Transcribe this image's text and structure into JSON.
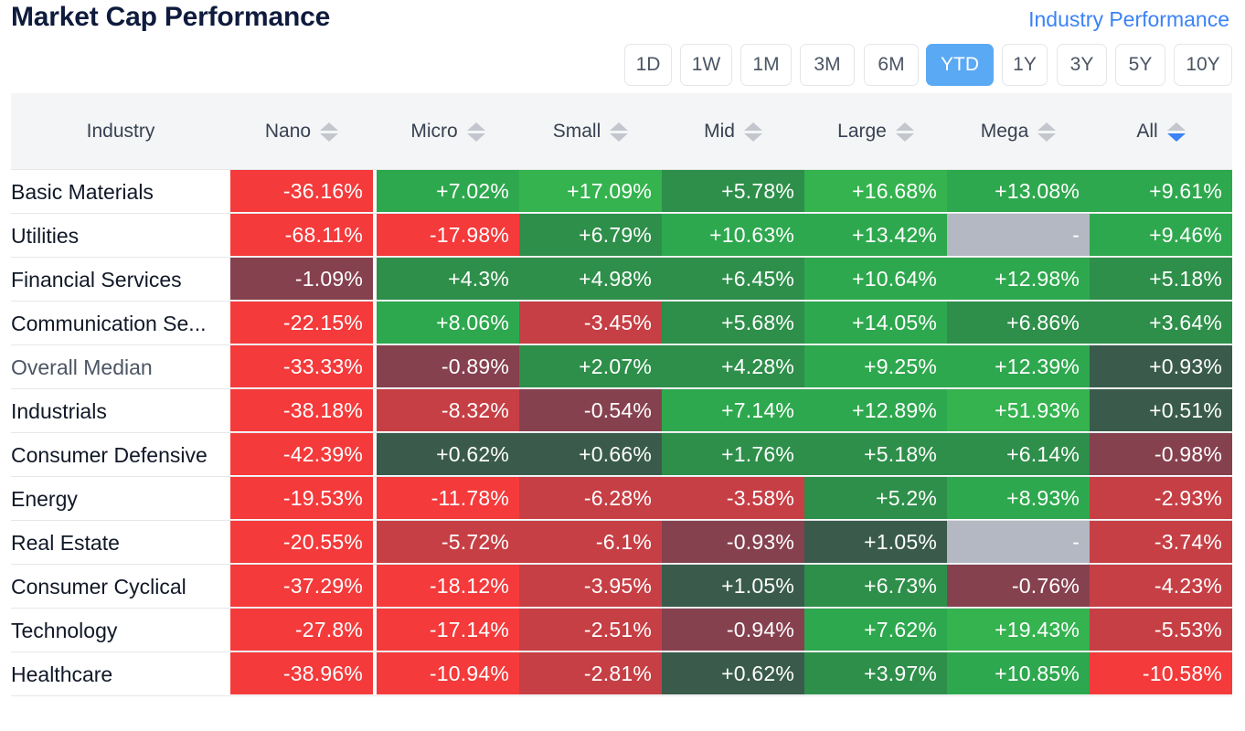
{
  "header": {
    "title": "Market Cap Performance",
    "link_label": "Industry Performance"
  },
  "periods": [
    {
      "label": "1D",
      "active": false
    },
    {
      "label": "1W",
      "active": false
    },
    {
      "label": "1M",
      "active": false
    },
    {
      "label": "3M",
      "active": false
    },
    {
      "label": "6M",
      "active": false
    },
    {
      "label": "YTD",
      "active": true
    },
    {
      "label": "1Y",
      "active": false
    },
    {
      "label": "3Y",
      "active": false
    },
    {
      "label": "5Y",
      "active": false
    },
    {
      "label": "10Y",
      "active": false
    }
  ],
  "columns": {
    "industry": "Industry",
    "caps": [
      "Nano",
      "Micro",
      "Small",
      "Mid",
      "Large",
      "Mega",
      "All"
    ],
    "sorted_column": "All",
    "sort_direction": "descending"
  },
  "colors": {
    "accent": "#3b82f6",
    "active_period": "#5aa9f5",
    "strong_red": "#f43a3b",
    "mid_red": "#c63f45",
    "weak_red": "#86414f",
    "weak_green": "#3a5b4c",
    "mid_green": "#2e8f4a",
    "green": "#2ea84e",
    "strong_green": "#34b34f",
    "missing": "#b3b8c3"
  },
  "rows": [
    {
      "name": "Basic Materials",
      "median": false,
      "values": [
        "-36.16%",
        "+7.02%",
        "+17.09%",
        "+5.78%",
        "+16.68%",
        "+13.08%",
        "+9.61%"
      ]
    },
    {
      "name": "Utilities",
      "median": false,
      "values": [
        "-68.11%",
        "-17.98%",
        "+6.79%",
        "+10.63%",
        "+13.42%",
        "-",
        "+9.46%"
      ]
    },
    {
      "name": "Financial Services",
      "median": false,
      "values": [
        "-1.09%",
        "+4.3%",
        "+4.98%",
        "+6.45%",
        "+10.64%",
        "+12.98%",
        "+5.18%"
      ]
    },
    {
      "name": "Communication Se...",
      "median": false,
      "values": [
        "-22.15%",
        "+8.06%",
        "-3.45%",
        "+5.68%",
        "+14.05%",
        "+6.86%",
        "+3.64%"
      ]
    },
    {
      "name": "Overall Median",
      "median": true,
      "values": [
        "-33.33%",
        "-0.89%",
        "+2.07%",
        "+4.28%",
        "+9.25%",
        "+12.39%",
        "+0.93%"
      ]
    },
    {
      "name": "Industrials",
      "median": false,
      "values": [
        "-38.18%",
        "-8.32%",
        "-0.54%",
        "+7.14%",
        "+12.89%",
        "+51.93%",
        "+0.51%"
      ]
    },
    {
      "name": "Consumer Defensive",
      "median": false,
      "values": [
        "-42.39%",
        "+0.62%",
        "+0.66%",
        "+1.76%",
        "+5.18%",
        "+6.14%",
        "-0.98%"
      ]
    },
    {
      "name": "Energy",
      "median": false,
      "values": [
        "-19.53%",
        "-11.78%",
        "-6.28%",
        "-3.58%",
        "+5.2%",
        "+8.93%",
        "-2.93%"
      ]
    },
    {
      "name": "Real Estate",
      "median": false,
      "values": [
        "-20.55%",
        "-5.72%",
        "-6.1%",
        "-0.93%",
        "+1.05%",
        "-",
        "-3.74%"
      ]
    },
    {
      "name": "Consumer Cyclical",
      "median": false,
      "values": [
        "-37.29%",
        "-18.12%",
        "-3.95%",
        "+1.05%",
        "+6.73%",
        "-0.76%",
        "-4.23%"
      ]
    },
    {
      "name": "Technology",
      "median": false,
      "values": [
        "-27.8%",
        "-17.14%",
        "-2.51%",
        "-0.94%",
        "+7.62%",
        "+19.43%",
        "-5.53%"
      ]
    },
    {
      "name": "Healthcare",
      "median": false,
      "values": [
        "-38.96%",
        "-10.94%",
        "-2.81%",
        "+0.62%",
        "+3.97%",
        "+10.85%",
        "-10.58%"
      ]
    }
  ]
}
